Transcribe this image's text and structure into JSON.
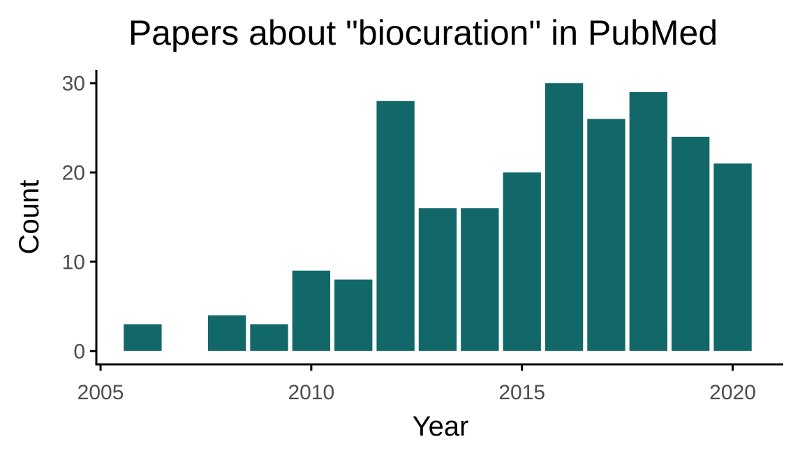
{
  "chart_data": {
    "type": "bar",
    "title": "Papers about \"biocuration\" in PubMed",
    "xlabel": "Year",
    "ylabel": "Count",
    "x": [
      2006,
      2008,
      2009,
      2010,
      2011,
      2012,
      2013,
      2014,
      2015,
      2016,
      2017,
      2018,
      2019,
      2020
    ],
    "values": [
      3,
      4,
      3,
      9,
      8,
      28,
      16,
      16,
      20,
      30,
      26,
      29,
      24,
      21
    ],
    "xlim": [
      2004.9,
      2021.2
    ],
    "ylim": [
      -1.5,
      31.5
    ],
    "xticks": [
      2005,
      2010,
      2015,
      2020
    ],
    "yticks": [
      0,
      10,
      20,
      30
    ],
    "bar_color": "#126769",
    "grid": false,
    "legend": "none"
  }
}
